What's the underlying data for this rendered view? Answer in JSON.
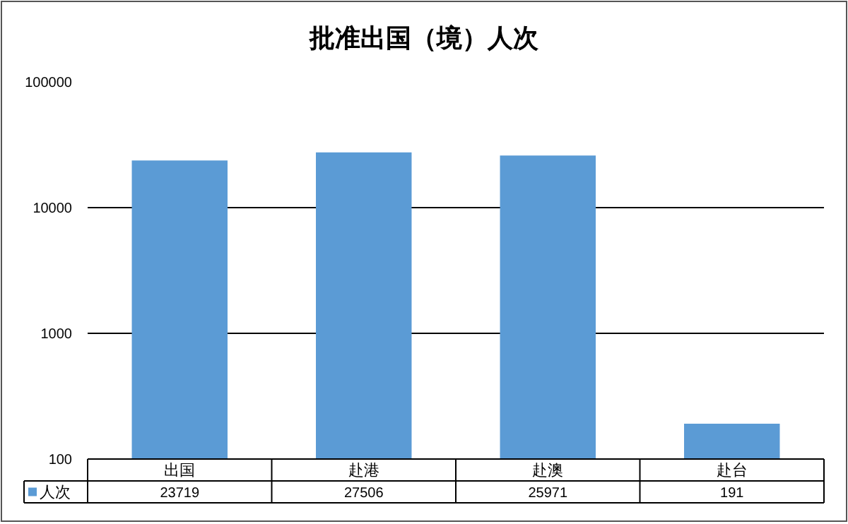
{
  "chart_data": {
    "type": "bar",
    "title": "批准出国（境）人次",
    "categories": [
      "出国",
      "赴港",
      "赴澳",
      "赴台"
    ],
    "series": [
      {
        "name": "人次",
        "color": "#5b9bd5",
        "values": [
          23719,
          27506,
          25971,
          191
        ]
      }
    ],
    "log": true,
    "ylim": [
      100,
      100000
    ],
    "yticks": [
      100,
      1000,
      10000,
      100000
    ],
    "grid": "y",
    "legend": "bottom",
    "data_labels": true
  }
}
